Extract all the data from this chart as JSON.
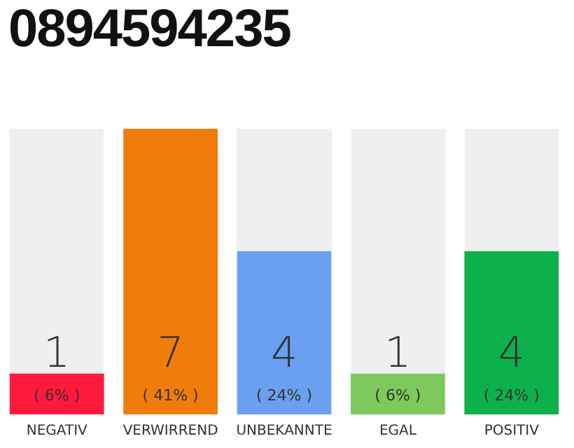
{
  "chart_data": {
    "type": "bar",
    "title": "0894594235",
    "categories": [
      "NEGATIV",
      "VERWIRREND",
      "UNBEKANNTE",
      "EGAL",
      "POSITIV"
    ],
    "values": [
      1,
      7,
      4,
      1,
      4
    ],
    "colors": [
      "#ff1a3c",
      "#f07d0a",
      "#6aa0ef",
      "#7dc95e",
      "#0db14b"
    ],
    "data_labels": true,
    "grid": false,
    "legend": false,
    "annotations": [
      {
        "text": "( 6% )",
        "x": "NEGATIV",
        "y": 0
      },
      {
        "text": "( 41% )",
        "x": "VERWIRREND",
        "y": 0
      },
      {
        "text": "( 24% )",
        "x": "UNBEKANNTE",
        "y": 0
      },
      {
        "text": "( 6% )",
        "x": "EGAL",
        "y": 0
      },
      {
        "text": "( 24% )",
        "x": "POSITIV",
        "y": 0
      }
    ]
  }
}
